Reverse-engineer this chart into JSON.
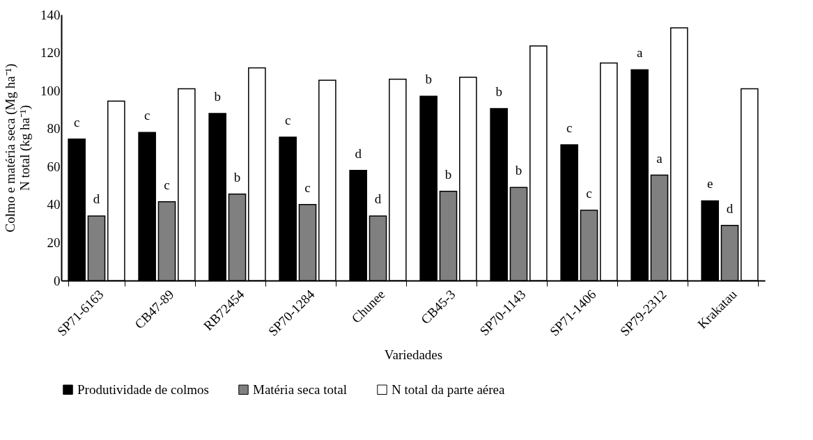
{
  "chart_data": {
    "type": "bar",
    "xlabel": "Variedades",
    "ylabel": "Colmo e matéria seca (Mg ha⁻¹)\nN total (kg ha⁻¹)",
    "categories": [
      "SP71-6163",
      "CB47-89",
      "RB72454",
      "SP70-1284",
      "Chunee",
      "CB45-3",
      "SP70-1143",
      "SP71-1406",
      "SP79-2312",
      "Krakatau"
    ],
    "series": [
      {
        "name": "Produtividade de colmos",
        "color": "#000000",
        "values": [
          74.5,
          78,
          88,
          75.5,
          58,
          97,
          90.5,
          71.5,
          111,
          42
        ]
      },
      {
        "name": "Matéria seca total",
        "color": "#808080",
        "values": [
          34,
          41.5,
          45.5,
          40,
          34,
          47,
          49,
          37,
          55.5,
          29
        ]
      },
      {
        "name": "N total da parte aérea",
        "color": "#ffffff",
        "values": [
          94.5,
          101,
          112,
          105.5,
          106,
          107,
          123.5,
          114.5,
          133,
          101
        ]
      }
    ],
    "ylim": [
      0,
      140
    ],
    "yticks": [
      0,
      20,
      40,
      60,
      80,
      100,
      120,
      140
    ],
    "grid": false,
    "legend": "bottom",
    "annotations": [
      {
        "text": "c",
        "x": "SP71-6163",
        "y": 74.5
      },
      {
        "text": "d",
        "x": "SP71-6163",
        "y": 34
      },
      {
        "text": "c",
        "x": "CB47-89",
        "y": 78
      },
      {
        "text": "c",
        "x": "CB47-89",
        "y": 41.5
      },
      {
        "text": "b",
        "x": "RB72454",
        "y": 88
      },
      {
        "text": "b",
        "x": "RB72454",
        "y": 45.5
      },
      {
        "text": "c",
        "x": "SP70-1284",
        "y": 75.5
      },
      {
        "text": "c",
        "x": "SP70-1284",
        "y": 40
      },
      {
        "text": "d",
        "x": "Chunee",
        "y": 58
      },
      {
        "text": "d",
        "x": "Chunee",
        "y": 34
      },
      {
        "text": "b",
        "x": "CB45-3",
        "y": 97
      },
      {
        "text": "b",
        "x": "CB45-3",
        "y": 47
      },
      {
        "text": "b",
        "x": "SP70-1143",
        "y": 90.5
      },
      {
        "text": "b",
        "x": "SP70-1143",
        "y": 49
      },
      {
        "text": "c",
        "x": "SP71-1406",
        "y": 71.5
      },
      {
        "text": "c",
        "x": "SP71-1406",
        "y": 37
      },
      {
        "text": "a",
        "x": "SP79-2312",
        "y": 111
      },
      {
        "text": "a",
        "x": "SP79-2312",
        "y": 55.5
      },
      {
        "text": "e",
        "x": "Krakatau",
        "y": 42
      },
      {
        "text": "d",
        "x": "Krakatau",
        "y": 29
      }
    ]
  }
}
